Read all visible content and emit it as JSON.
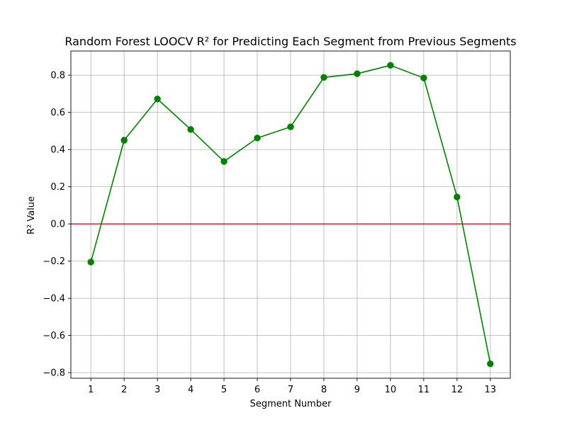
{
  "chart_data": {
    "type": "line",
    "title": "Random Forest LOOCV R² for Predicting Each Segment from Previous Segments",
    "xlabel": "Segment Number",
    "ylabel": "R² Value",
    "x": [
      1,
      2,
      3,
      4,
      5,
      6,
      7,
      8,
      9,
      10,
      11,
      12,
      13
    ],
    "x_tick_labels": [
      "1",
      "2",
      "3",
      "4",
      "5",
      "6",
      "7",
      "8",
      "9",
      "10",
      "11",
      "12",
      "13"
    ],
    "series": [
      {
        "values": [
          -0.205,
          0.45,
          0.672,
          0.508,
          0.336,
          0.462,
          0.522,
          0.788,
          0.808,
          0.853,
          0.785,
          0.145,
          -0.752
        ],
        "color": "#008000",
        "marker": "circle"
      }
    ],
    "reference_line": {
      "y": 0.0,
      "color": "#d62728"
    },
    "y_ticks": [
      -0.8,
      -0.6,
      -0.4,
      -0.2,
      0.0,
      0.2,
      0.4,
      0.6,
      0.8
    ],
    "y_tick_labels": [
      "−0.8",
      "−0.6",
      "−0.4",
      "−0.2",
      "0.0",
      "0.2",
      "0.4",
      "0.6",
      "0.8"
    ],
    "xlim": [
      0.4,
      13.6
    ],
    "ylim": [
      -0.83,
      0.93
    ],
    "grid": true,
    "legend": "none"
  }
}
